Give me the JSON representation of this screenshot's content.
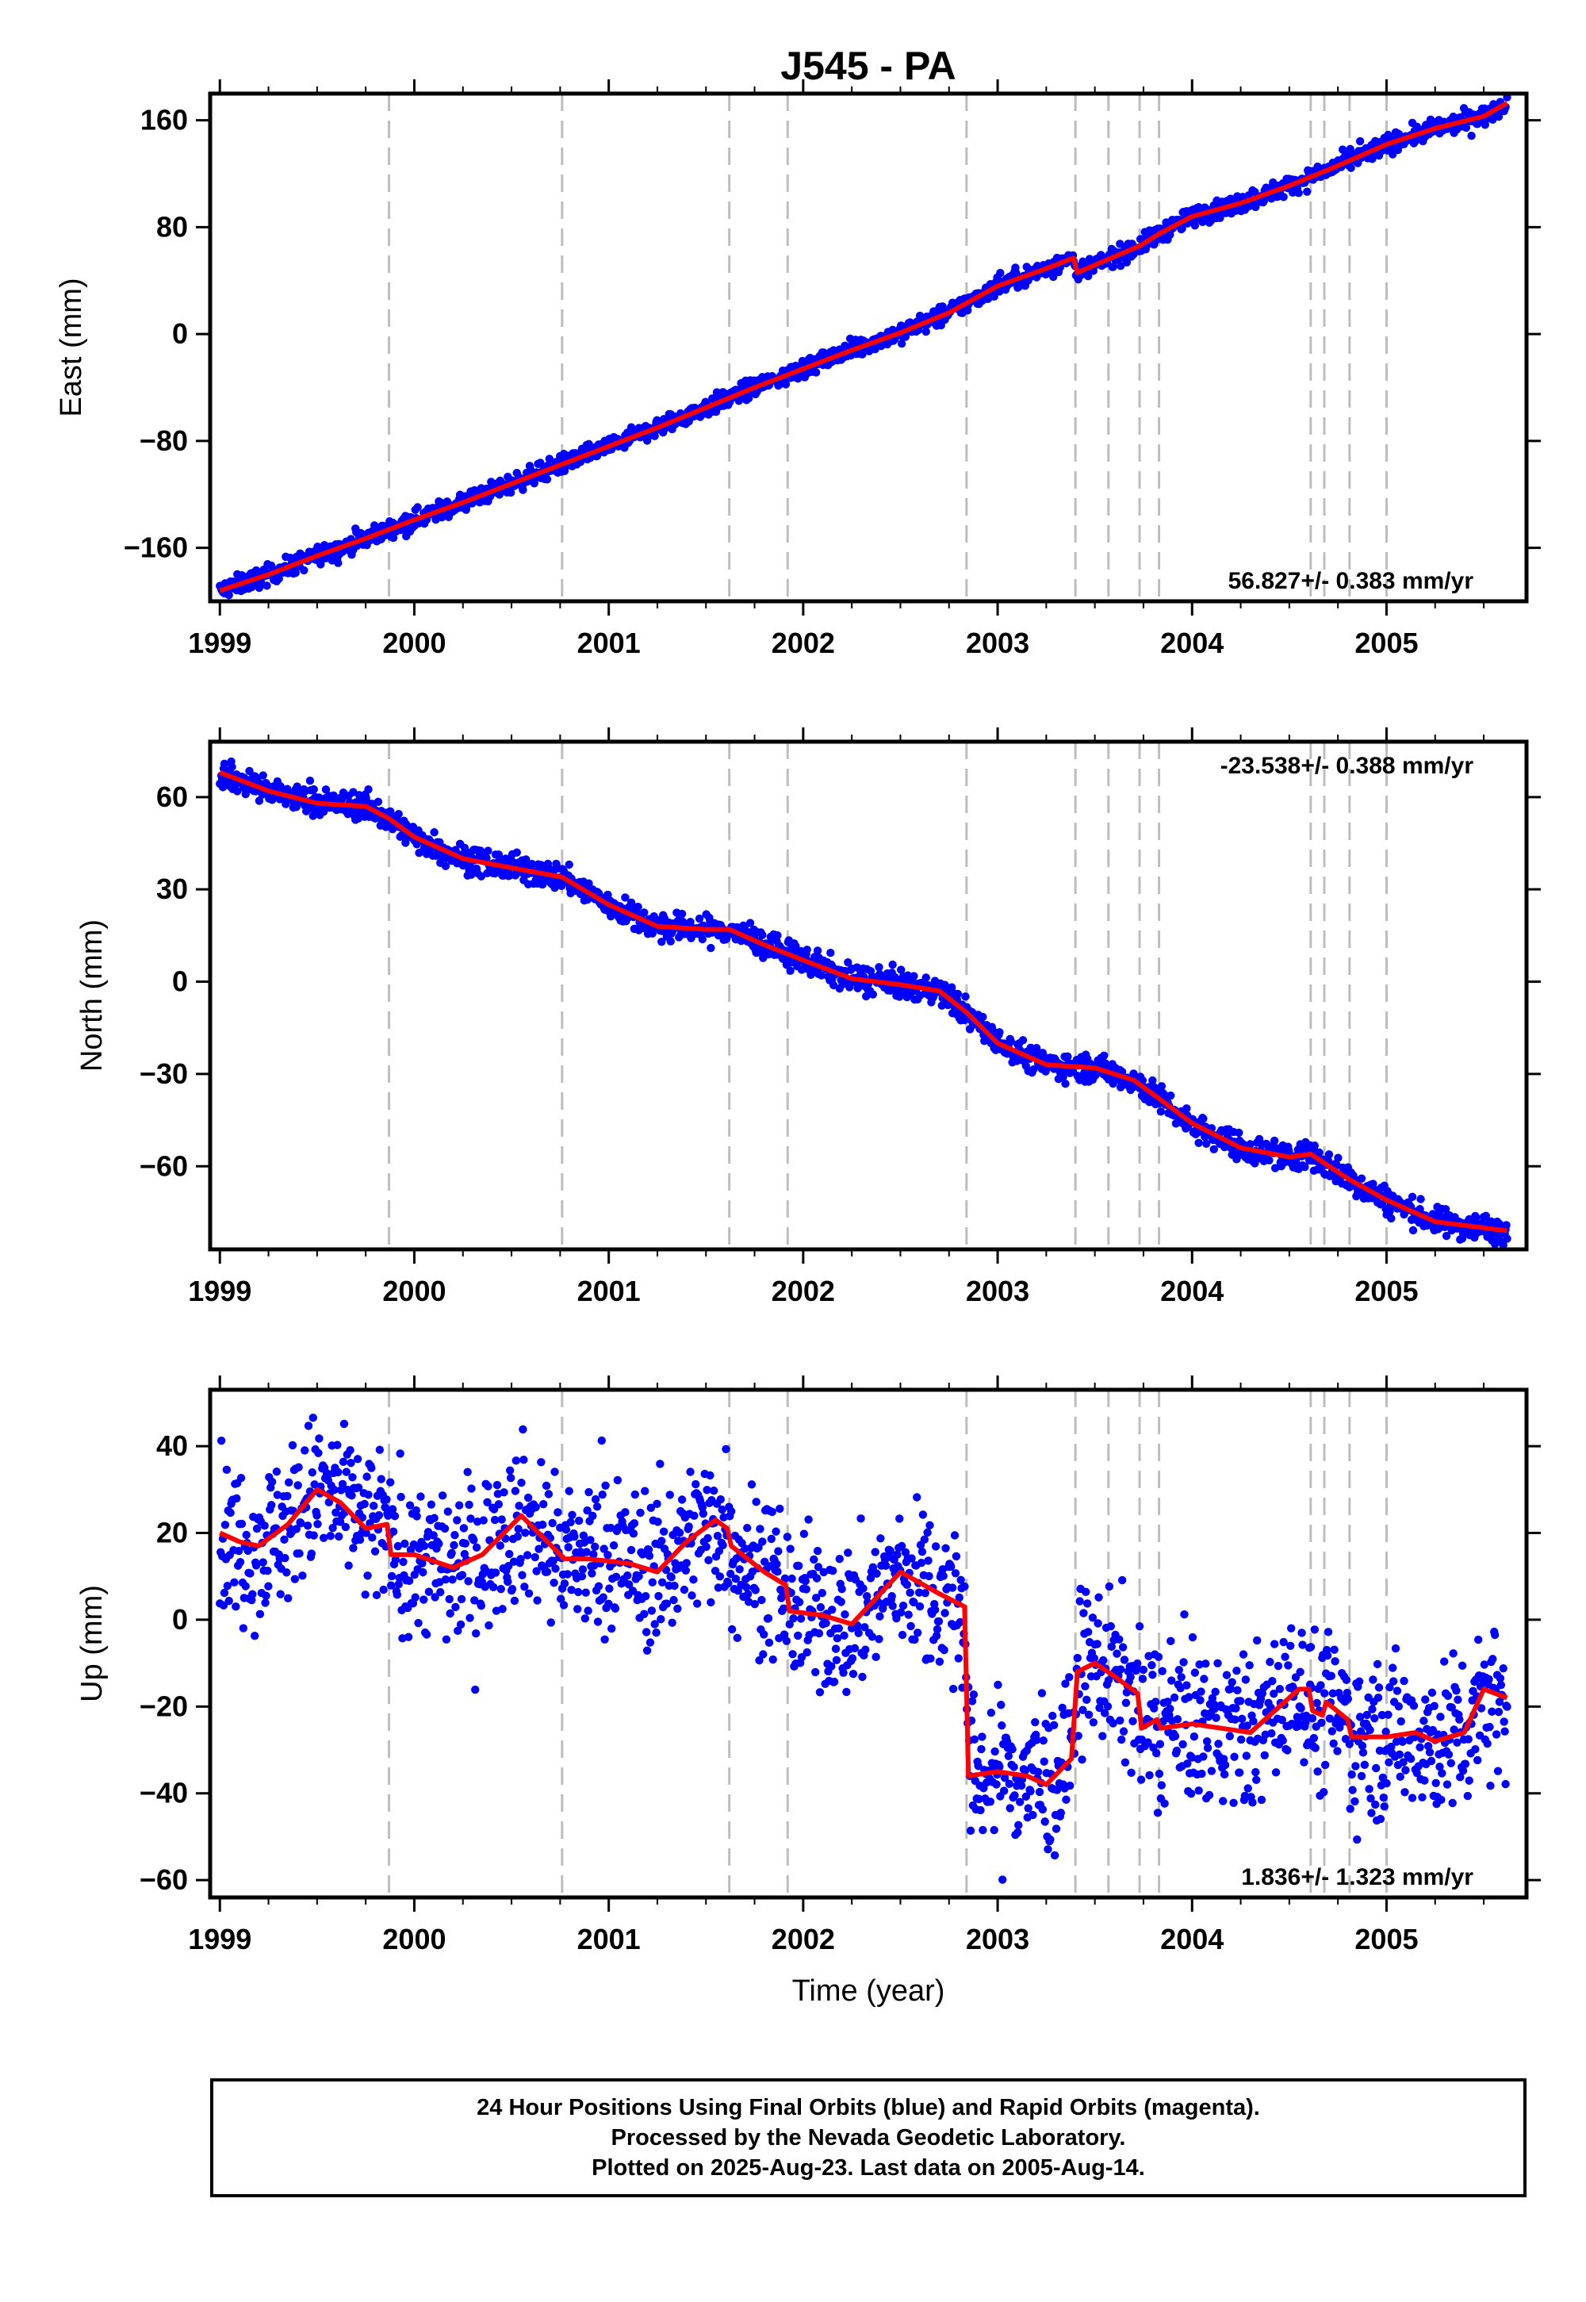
{
  "chart_data": [
    {
      "type": "scatter",
      "title": "J545 - PA",
      "ylabel": "East (mm)",
      "xlabel": "",
      "xlim": [
        1998.95,
        2005.72
      ],
      "ylim": [
        -200,
        180
      ],
      "y_ticks": [
        -160,
        -80,
        0,
        80,
        160
      ],
      "x_ticks": [
        1999,
        2000,
        2001,
        2002,
        2003,
        2004,
        2005
      ],
      "x_tick_labels": [
        "1999",
        "2000",
        "2001",
        "2002",
        "2003",
        "2004",
        "2005"
      ],
      "rate_label": "56.827+/- 0.383 mm/yr",
      "rate_position": "bottom-right",
      "event_lines": [
        1999.87,
        2000.76,
        2001.62,
        2001.92,
        2002.84,
        2003.4,
        2003.57,
        2003.73,
        2003.83,
        2004.61,
        2004.68,
        2004.81,
        2005.0
      ],
      "series": [
        {
          "kind": "points",
          "color": "#0000ff",
          "spread": 3.5,
          "x": [
            1999.0,
            1999.25,
            1999.5,
            1999.75,
            2000.0,
            2000.25,
            2000.5,
            2000.75,
            2001.0,
            2001.25,
            2001.5,
            2001.75,
            2002.0,
            2002.25,
            2002.5,
            2002.75,
            2003.0,
            2003.25,
            2003.39,
            2003.41,
            2003.6,
            2003.73,
            2003.83,
            2004.0,
            2004.25,
            2004.5,
            2004.75,
            2005.0,
            2005.25,
            2005.5,
            2005.62
          ],
          "y": [
            -192,
            -180,
            -166,
            -153,
            -139,
            -126,
            -112,
            -98,
            -84,
            -70,
            -55,
            -40,
            -26,
            -12,
            1,
            16,
            36,
            49,
            57,
            46,
            58,
            66,
            75,
            88,
            98,
            111,
            126,
            142,
            154,
            163,
            173
          ]
        },
        {
          "kind": "line",
          "color": "#ff0000",
          "x": [
            1999.0,
            1999.25,
            1999.5,
            1999.75,
            2000.0,
            2000.25,
            2000.5,
            2000.75,
            2001.0,
            2001.25,
            2001.5,
            2001.75,
            2002.0,
            2002.25,
            2002.5,
            2002.75,
            2003.0,
            2003.25,
            2003.39,
            2003.41,
            2003.6,
            2003.73,
            2003.83,
            2004.0,
            2004.25,
            2004.5,
            2004.75,
            2005.0,
            2005.25,
            2005.5,
            2005.62
          ],
          "y": [
            -192,
            -180,
            -166,
            -153,
            -139,
            -126,
            -112,
            -98,
            -84,
            -70,
            -55,
            -40,
            -26,
            -12,
            1,
            16,
            36,
            49,
            57,
            46,
            58,
            66,
            75,
            88,
            98,
            111,
            126,
            142,
            154,
            163,
            173
          ]
        }
      ]
    },
    {
      "type": "scatter",
      "title": "",
      "ylabel": "North (mm)",
      "xlabel": "",
      "xlim": [
        1998.95,
        2005.72
      ],
      "ylim": [
        -87,
        78
      ],
      "y_ticks": [
        -60,
        -30,
        0,
        30,
        60
      ],
      "x_ticks": [
        1999,
        2000,
        2001,
        2002,
        2003,
        2004,
        2005
      ],
      "x_tick_labels": [
        "1999",
        "2000",
        "2001",
        "2002",
        "2003",
        "2004",
        "2005"
      ],
      "rate_label": "-23.538+/- 0.388 mm/yr",
      "rate_position": "top-right",
      "event_lines": [
        1999.87,
        2000.76,
        2001.62,
        2001.92,
        2002.84,
        2003.4,
        2003.57,
        2003.73,
        2003.83,
        2004.61,
        2004.68,
        2004.81,
        2005.0
      ],
      "series": [
        {
          "kind": "points",
          "color": "#0000ff",
          "spread": 2.2,
          "x": [
            1999.0,
            1999.25,
            1999.5,
            1999.75,
            1999.87,
            2000.0,
            2000.25,
            2000.5,
            2000.76,
            2001.0,
            2001.25,
            2001.5,
            2001.62,
            2001.8,
            2002.0,
            2002.25,
            2002.5,
            2002.7,
            2002.84,
            2003.0,
            2003.25,
            2003.5,
            2003.7,
            2003.83,
            2004.0,
            2004.25,
            2004.5,
            2004.61,
            2004.8,
            2005.0,
            2005.25,
            2005.5,
            2005.62
          ],
          "y": [
            68,
            62,
            58,
            57,
            53,
            47,
            40,
            37,
            34,
            25,
            18,
            17,
            17,
            12,
            7,
            1,
            -1,
            -3,
            -10,
            -20,
            -27,
            -28,
            -32,
            -38,
            -46,
            -54,
            -57,
            -56,
            -64,
            -71,
            -78,
            -80,
            -81
          ]
        },
        {
          "kind": "line",
          "color": "#ff0000",
          "x": [
            1999.0,
            1999.25,
            1999.5,
            1999.75,
            1999.87,
            2000.0,
            2000.25,
            2000.5,
            2000.76,
            2001.0,
            2001.25,
            2001.5,
            2001.62,
            2001.8,
            2002.0,
            2002.25,
            2002.5,
            2002.7,
            2002.84,
            2003.0,
            2003.25,
            2003.5,
            2003.7,
            2003.83,
            2004.0,
            2004.25,
            2004.5,
            2004.61,
            2004.8,
            2005.0,
            2005.25,
            2005.5,
            2005.62
          ],
          "y": [
            68,
            62,
            58,
            57,
            53,
            47,
            40,
            37,
            34,
            25,
            18,
            17,
            17,
            12,
            7,
            1,
            -1,
            -3,
            -10,
            -20,
            -27,
            -28,
            -32,
            -38,
            -46,
            -54,
            -57,
            -56,
            -64,
            -71,
            -78,
            -80,
            -81
          ]
        }
      ]
    },
    {
      "type": "scatter",
      "title": "",
      "ylabel": "Up (mm)",
      "xlabel": "Time (year)",
      "xlim": [
        1998.95,
        2005.72
      ],
      "ylim": [
        -64,
        53
      ],
      "y_ticks": [
        -60,
        -40,
        -20,
        0,
        20,
        40
      ],
      "x_ticks": [
        1999,
        2000,
        2001,
        2002,
        2003,
        2004,
        2005
      ],
      "x_tick_labels": [
        "1999",
        "2000",
        "2001",
        "2002",
        "2003",
        "2004",
        "2005"
      ],
      "rate_label": "1.836+/- 1.323 mm/yr",
      "rate_position": "bottom-right",
      "event_lines": [
        1999.87,
        2000.76,
        2001.62,
        2001.92,
        2002.84,
        2003.4,
        2003.57,
        2003.73,
        2003.83,
        2004.61,
        2004.68,
        2004.81,
        2005.0
      ],
      "series": [
        {
          "kind": "points",
          "color": "#0000ff",
          "spread": 9,
          "x": [
            1999.0,
            1999.1,
            1999.2,
            1999.35,
            1999.5,
            1999.62,
            1999.75,
            1999.86,
            1999.88,
            2000.0,
            2000.2,
            2000.35,
            2000.55,
            2000.75,
            2000.77,
            2000.9,
            2001.1,
            2001.25,
            2001.4,
            2001.55,
            2001.61,
            2001.63,
            2001.8,
            2001.91,
            2001.93,
            2002.1,
            2002.25,
            2002.5,
            2002.7,
            2002.83,
            2002.85,
            2003.0,
            2003.15,
            2003.25,
            2003.38,
            2003.41,
            2003.5,
            2003.6,
            2003.72,
            2003.74,
            2003.82,
            2003.84,
            2004.0,
            2004.15,
            2004.3,
            2004.45,
            2004.55,
            2004.6,
            2004.62,
            2004.67,
            2004.69,
            2004.8,
            2004.82,
            2005.0,
            2005.15,
            2005.25,
            2005.4,
            2005.5,
            2005.62
          ],
          "y": [
            20,
            18,
            17,
            22,
            30,
            27,
            21,
            22,
            15,
            15,
            12,
            15,
            24,
            15,
            14,
            14,
            13,
            11,
            18,
            23,
            21,
            17,
            11,
            8,
            2,
            1,
            -1,
            11,
            6,
            3,
            -36,
            -35,
            -36,
            -38,
            -32,
            -12,
            -10,
            -13,
            -17,
            -25,
            -23,
            -25,
            -24,
            -25,
            -26,
            -20,
            -16,
            -16,
            -21,
            -22,
            -19,
            -23,
            -27,
            -27,
            -26,
            -28,
            -26,
            -16,
            -18
          ]
        },
        {
          "kind": "line",
          "color": "#ff0000",
          "x": [
            1999.0,
            1999.1,
            1999.2,
            1999.35,
            1999.5,
            1999.62,
            1999.75,
            1999.86,
            1999.88,
            2000.0,
            2000.2,
            2000.35,
            2000.55,
            2000.75,
            2000.77,
            2000.9,
            2001.1,
            2001.25,
            2001.4,
            2001.55,
            2001.61,
            2001.63,
            2001.8,
            2001.91,
            2001.93,
            2002.1,
            2002.25,
            2002.5,
            2002.7,
            2002.83,
            2002.85,
            2003.0,
            2003.15,
            2003.25,
            2003.38,
            2003.41,
            2003.5,
            2003.6,
            2003.72,
            2003.74,
            2003.82,
            2003.84,
            2004.0,
            2004.15,
            2004.3,
            2004.45,
            2004.55,
            2004.6,
            2004.62,
            2004.67,
            2004.69,
            2004.8,
            2004.82,
            2005.0,
            2005.15,
            2005.25,
            2005.4,
            2005.5,
            2005.62
          ],
          "y": [
            20,
            18,
            17,
            22,
            30,
            27,
            21,
            22,
            15,
            15,
            12,
            15,
            24,
            15,
            14,
            14,
            13,
            11,
            18,
            23,
            21,
            17,
            11,
            8,
            2,
            1,
            -1,
            11,
            6,
            3,
            -36,
            -35,
            -36,
            -38,
            -32,
            -12,
            -10,
            -13,
            -17,
            -25,
            -23,
            -25,
            -24,
            -25,
            -26,
            -20,
            -16,
            -16,
            -21,
            -22,
            -19,
            -23,
            -27,
            -27,
            -26,
            -28,
            -26,
            -16,
            -18
          ]
        }
      ]
    }
  ],
  "footer": {
    "line1": "24 Hour Positions Using Final Orbits (blue) and Rapid Orbits (magenta).",
    "line2": "Processed by the Nevada Geodetic Laboratory.",
    "line3": "Plotted on 2025-Aug-23. Last data on 2005-Aug-14."
  }
}
